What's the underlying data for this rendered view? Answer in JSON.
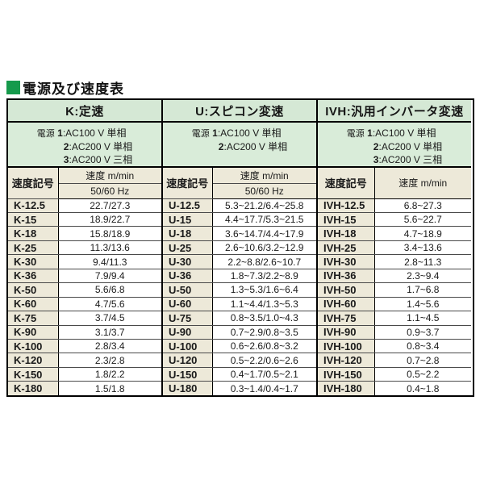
{
  "title": "電源及び速度表",
  "colors": {
    "accent_green": "#169a4c",
    "section_header_green": "#d5e8d5",
    "power_area_green": "#d9ecd9",
    "header_beige": "#ede9d9"
  },
  "power_label": "電源",
  "col_code_header": "速度記号",
  "col_speed_header": "速度 m/min",
  "sections": [
    {
      "title": "K:定速",
      "power_lines": [
        {
          "num": "1",
          "rest": ":AC100 V 単相"
        },
        {
          "num": "2",
          "rest": ":AC200 V 単相"
        },
        {
          "num": "3",
          "rest": ":AC200 V 三相"
        }
      ],
      "speed_subheader": "50/60 Hz",
      "rows": [
        {
          "code": "K-12.5",
          "speed": "22.7/27.3"
        },
        {
          "code": "K-15",
          "speed": "18.9/22.7"
        },
        {
          "code": "K-18",
          "speed": "15.8/18.9"
        },
        {
          "code": "K-25",
          "speed": "11.3/13.6"
        },
        {
          "code": "K-30",
          "speed": "9.4/11.3"
        },
        {
          "code": "K-36",
          "speed": "7.9/9.4"
        },
        {
          "code": "K-50",
          "speed": "5.6/6.8"
        },
        {
          "code": "K-60",
          "speed": "4.7/5.6"
        },
        {
          "code": "K-75",
          "speed": "3.7/4.5"
        },
        {
          "code": "K-90",
          "speed": "3.1/3.7"
        },
        {
          "code": "K-100",
          "speed": "2.8/3.4"
        },
        {
          "code": "K-120",
          "speed": "2.3/2.8"
        },
        {
          "code": "K-150",
          "speed": "1.8/2.2"
        },
        {
          "code": "K-180",
          "speed": "1.5/1.8"
        }
      ]
    },
    {
      "title": "U:スピコン変速",
      "power_lines": [
        {
          "num": "1",
          "rest": ":AC100 V 単相"
        },
        {
          "num": "2",
          "rest": ":AC200 V 単相"
        }
      ],
      "speed_subheader": "50/60 Hz",
      "rows": [
        {
          "code": "U-12.5",
          "speed": "5.3~21.2/6.4~25.8"
        },
        {
          "code": "U-15",
          "speed": "4.4~17.7/5.3~21.5"
        },
        {
          "code": "U-18",
          "speed": "3.6~14.7/4.4~17.9"
        },
        {
          "code": "U-25",
          "speed": "2.6~10.6/3.2~12.9"
        },
        {
          "code": "U-30",
          "speed": "2.2~8.8/2.6~10.7"
        },
        {
          "code": "U-36",
          "speed": "1.8~7.3/2.2~8.9"
        },
        {
          "code": "U-50",
          "speed": "1.3~5.3/1.6~6.4"
        },
        {
          "code": "U-60",
          "speed": "1.1~4.4/1.3~5.3"
        },
        {
          "code": "U-75",
          "speed": "0.8~3.5/1.0~4.3"
        },
        {
          "code": "U-90",
          "speed": "0.7~2.9/0.8~3.5"
        },
        {
          "code": "U-100",
          "speed": "0.6~2.6/0.8~3.2"
        },
        {
          "code": "U-120",
          "speed": "0.5~2.2/0.6~2.6"
        },
        {
          "code": "U-150",
          "speed": "0.4~1.7/0.5~2.1"
        },
        {
          "code": "U-180",
          "speed": "0.3~1.4/0.4~1.7"
        }
      ]
    },
    {
      "title": "IVH:汎用インバータ変速",
      "power_lines": [
        {
          "num": "1",
          "rest": ":AC100 V 単相"
        },
        {
          "num": "2",
          "rest": ":AC200 V 単相"
        },
        {
          "num": "3",
          "rest": ":AC200 V 三相"
        }
      ],
      "speed_subheader": null,
      "rows": [
        {
          "code": "IVH-12.5",
          "speed": "6.8~27.3"
        },
        {
          "code": "IVH-15",
          "speed": "5.6~22.7"
        },
        {
          "code": "IVH-18",
          "speed": "4.7~18.9"
        },
        {
          "code": "IVH-25",
          "speed": "3.4~13.6"
        },
        {
          "code": "IVH-30",
          "speed": "2.8~11.3"
        },
        {
          "code": "IVH-36",
          "speed": "2.3~9.4"
        },
        {
          "code": "IVH-50",
          "speed": "1.7~6.8"
        },
        {
          "code": "IVH-60",
          "speed": "1.4~5.6"
        },
        {
          "code": "IVH-75",
          "speed": "1.1~4.5"
        },
        {
          "code": "IVH-90",
          "speed": "0.9~3.7"
        },
        {
          "code": "IVH-100",
          "speed": "0.8~3.4"
        },
        {
          "code": "IVH-120",
          "speed": "0.7~2.8"
        },
        {
          "code": "IVH-150",
          "speed": "0.5~2.2"
        },
        {
          "code": "IVH-180",
          "speed": "0.4~1.8"
        }
      ]
    }
  ]
}
